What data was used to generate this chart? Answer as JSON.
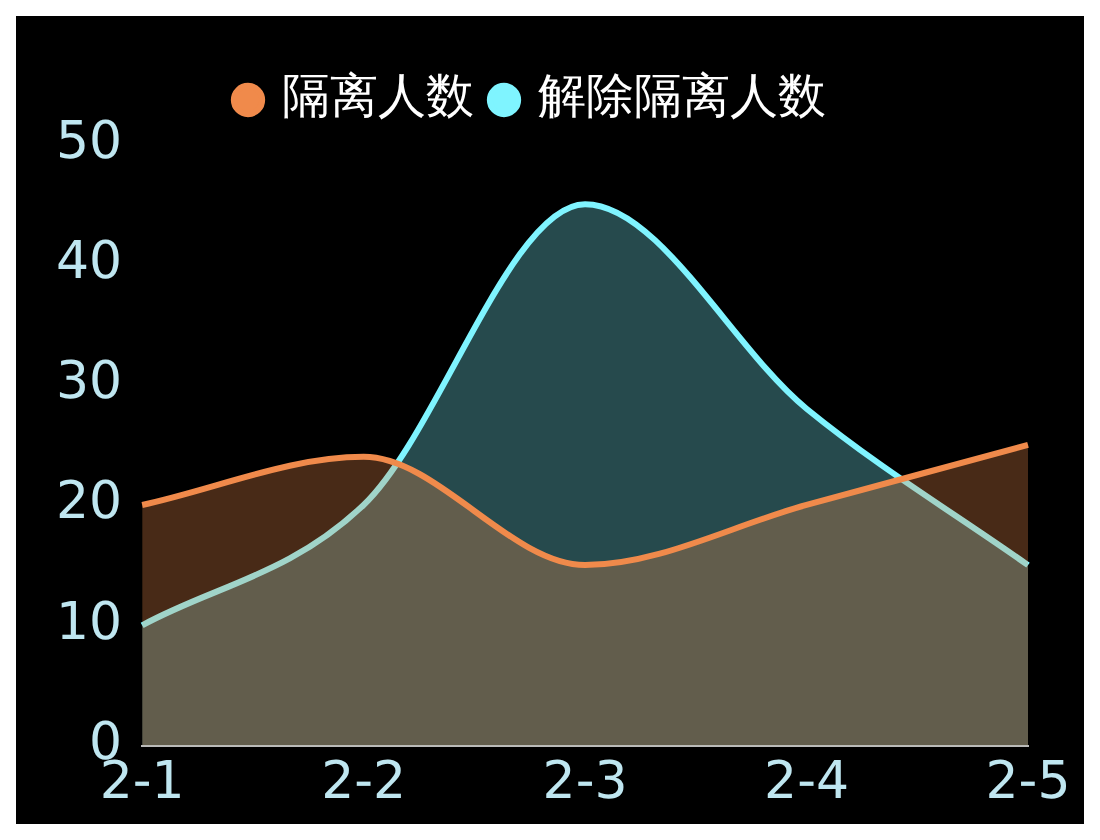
{
  "chart_data": {
    "type": "area",
    "categories": [
      "2-1",
      "2-2",
      "2-3",
      "2-4",
      "2-5"
    ],
    "series": [
      {
        "name": "隔离人数",
        "color": "#f08a4b",
        "values": [
          20,
          24,
          15,
          20,
          25
        ]
      },
      {
        "name": "解除隔离人数",
        "color": "#7ff4ff",
        "values": [
          10,
          20,
          45,
          28,
          15
        ]
      }
    ],
    "ylim": [
      0,
      50
    ],
    "yticks": [
      0,
      10,
      20,
      30,
      40,
      50
    ],
    "grid": false,
    "legend": "top"
  }
}
